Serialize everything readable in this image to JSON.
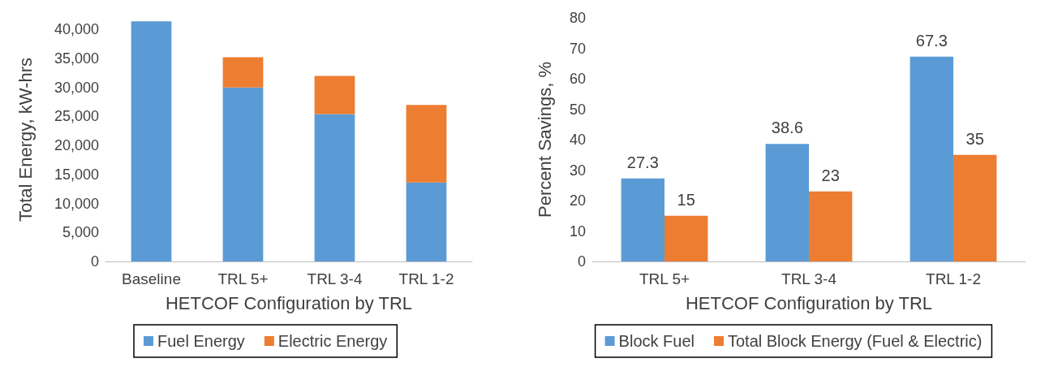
{
  "chart_data": [
    {
      "type": "bar",
      "xlabel": "HETCOF Configuration by TRL",
      "ylabel": "Total Energy, kW-hrs",
      "categories": [
        "Baseline",
        "TRL 5+",
        "TRL 3-4",
        "TRL 1-2"
      ],
      "stacked": true,
      "series": [
        {
          "name": "Fuel Energy",
          "color": "#5b9bd5",
          "values": [
            41400,
            30000,
            25400,
            13600
          ]
        },
        {
          "name": "Electric Energy",
          "color": "#ed7d31",
          "values": [
            null,
            5200,
            6600,
            13400
          ]
        }
      ],
      "ylim": [
        0,
        42000
      ],
      "yticks": [
        0,
        {
          "value": 5000,
          "label": "5,000"
        },
        {
          "value": 10000,
          "label": "10,000"
        },
        {
          "value": 15000,
          "label": "15,000"
        },
        {
          "value": 20000,
          "label": "20,000"
        },
        {
          "value": 25000,
          "label": "25,000"
        },
        {
          "value": 30000,
          "label": "30,000"
        },
        {
          "value": 35000,
          "label": "35,000"
        },
        {
          "value": 40000,
          "label": "40,000"
        }
      ],
      "legend": "bottom"
    },
    {
      "type": "bar",
      "xlabel": "HETCOF Configuration by TRL",
      "ylabel": "Percent Savings, %",
      "categories": [
        "TRL 5+",
        "TRL 3-4",
        "TRL 1-2"
      ],
      "series": [
        {
          "name": "Block Fuel",
          "color": "#5b9bd5",
          "values": [
            27.3,
            38.6,
            67.3
          ]
        },
        {
          "name": "Total Block Energy (Fuel & Electric)",
          "color": "#ed7d31",
          "values": [
            15,
            23,
            35
          ]
        }
      ],
      "ylim": [
        0,
        80
      ],
      "yticks": [
        0,
        10,
        20,
        30,
        40,
        50,
        60,
        70,
        80
      ],
      "data_labels": true,
      "legend": "bottom"
    }
  ]
}
